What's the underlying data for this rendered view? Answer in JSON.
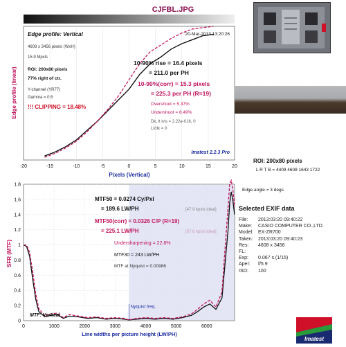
{
  "filename": "CJFBL.JPG",
  "top_chart": {
    "title": "Edge profile: Vertical",
    "timestamp": "20-Mar-2013 13:20:26",
    "info_lines": [
      "4608 x 3456 pixels (WxH)",
      "15.9 Mpxls"
    ],
    "roi_lines": [
      "ROI: 200x80 pixels",
      "77% right of ctr."
    ],
    "channel_lines": [
      "Y-channel  (YR77)",
      "Gamma = 0.5"
    ],
    "clipping_text": "!!! CLIPPING =  18.48%",
    "rise_lines": [
      "10-90% rise = 16.4 pixels",
      "= 211.0 per PH"
    ],
    "rise_corr_lines": [
      "10-90%(corr) = 15.3 pixels",
      "= 225.3 per PH   (R=19)"
    ],
    "overshoot_lines": [
      "Overshoot = 5.37%",
      "Undershoot = 8.49%"
    ],
    "noise_lines": [
      "Dk, lt lvls = 2.22e-016, 0",
      "Lt/dk = 0"
    ],
    "badge": "Imatest 2.2.3 Pro",
    "xlabel": "Pixels (Vertical)",
    "ylabel": "Edge profile (linear)",
    "x_ticks": [
      "-20",
      "-15",
      "-10",
      "-5",
      "0",
      "5",
      "10",
      "15",
      "20"
    ],
    "xlim": [
      -20,
      20
    ],
    "ylim": [
      0,
      1
    ]
  },
  "bottom_chart": {
    "title": "MTF: Vertical",
    "mtf50_lines": [
      "MTF50 = 0.0274 Cy/Pxl",
      "= 189.6 LW/PH"
    ],
    "mtf50_ideal": "[47.9 kpxls ideal]",
    "mtf50corr_lines": [
      "MTF50(corr) = 0.0326 C/P   (R=19)",
      "= 225.1 LW/PH"
    ],
    "mtf50corr_ideal": "[67.6 kpxls ideal]",
    "undersharpening": "Undersharpening = 22.8%",
    "mtf30": "MTF30 = 243 LW/PH",
    "nyquist_mtf": "MTF at Nyquist = 0.00986",
    "nyquist_label": "Nyquist freq.",
    "xlabel": "Line widths per picture height (LW/PH)",
    "ylabel": "SFR (MTF)",
    "x_ticks": [
      "0",
      "1000",
      "2000",
      "3000",
      "4000",
      "5000",
      "6000"
    ],
    "y_ticks": [
      "0",
      "0.2",
      "0.4",
      "0.6",
      "0.8",
      "1",
      "1.2",
      "1.4",
      "1.6",
      "1.8"
    ],
    "xlim": [
      0,
      6912
    ],
    "ylim": [
      0,
      1.8
    ]
  },
  "roi": {
    "label": "ROI: 200x80 pixels",
    "lrtb": "L R T B = 4409 4608  1643 1722"
  },
  "edge_angle": "Edge angle = 3 degs",
  "exif": {
    "title": "Selected EXIF data",
    "rows": [
      {
        "k": "File:",
        "v": "2013:03:20 09:40:22"
      },
      {
        "k": "Make:",
        "v": "CASIO COMPUTER CO.,LTD."
      },
      {
        "k": "Model:",
        "v": "EX-ZR700"
      },
      {
        "k": "Taken:",
        "v": "2013:03:20 09:40:23"
      },
      {
        "k": "Res:",
        "v": "4608 x 3456"
      },
      {
        "k": "FL:",
        "v": ""
      },
      {
        "k": "Exp:",
        "v": "0.067 s  (1/15)"
      },
      {
        "k": "Aper:",
        "v": "f/5.9"
      },
      {
        "k": "ISO:",
        "v": "100"
      }
    ]
  },
  "logo_text": "Imatest",
  "colors": {
    "accent": "#c0135c",
    "blue": "#1a2aa0",
    "dark": "#111111"
  },
  "chart_data": [
    {
      "type": "line",
      "title": "Edge profile: Vertical",
      "xlabel": "Pixels (Vertical)",
      "ylabel": "Edge profile (linear)",
      "xlim": [
        -20,
        20
      ],
      "ylim": [
        0,
        1
      ],
      "series": [
        {
          "x": [
            -16,
            -14,
            -12,
            -10,
            -8,
            -6,
            -4,
            -2,
            0,
            2,
            4,
            6,
            8,
            10,
            12,
            14,
            16
          ],
          "values": [
            0.03,
            0.06,
            0.1,
            0.15,
            0.22,
            0.29,
            0.37,
            0.45,
            0.53,
            0.64,
            0.72,
            0.77,
            0.83,
            0.87,
            0.9,
            0.93,
            0.94
          ]
        },
        {
          "x": [
            -16,
            -14,
            -12,
            -10,
            -8,
            -6,
            -4,
            -2,
            0,
            2,
            4,
            6,
            8,
            10,
            12,
            14,
            16
          ],
          "values": [
            0.02,
            0.05,
            0.09,
            0.14,
            0.21,
            0.29,
            0.38,
            0.48,
            0.6,
            0.72,
            0.81,
            0.86,
            0.91,
            0.95,
            0.98,
            0.99,
            1.0
          ]
        }
      ]
    },
    {
      "type": "line",
      "title": "MTF: Vertical",
      "xlabel": "Line widths per picture height (LW/PH)",
      "ylabel": "SFR (MTF)",
      "xlim": [
        0,
        6912
      ],
      "ylim": [
        0,
        1.8
      ],
      "nyquist": 3456,
      "series": [
        {
          "x": [
            0,
            100,
            200,
            300,
            400,
            500,
            700,
            900,
            1100,
            1300,
            1500,
            1800,
            2100,
            2400,
            2700,
            3000,
            3300,
            3456,
            3700,
            4000,
            4300,
            4600,
            4900,
            5200,
            5500,
            5700,
            5900,
            6100,
            6300,
            6500,
            6600,
            6700,
            6750,
            6800,
            6850,
            6912
          ],
          "values": [
            1.0,
            0.98,
            0.85,
            0.55,
            0.28,
            0.12,
            0.05,
            0.07,
            0.08,
            0.03,
            0.06,
            0.05,
            0.03,
            0.04,
            0.02,
            0.03,
            0.02,
            0.01,
            0.02,
            0.03,
            0.02,
            0.03,
            0.02,
            0.04,
            0.07,
            0.12,
            0.18,
            0.22,
            0.15,
            0.3,
            0.75,
            1.2,
            1.55,
            1.7,
            1.6,
            1.4
          ]
        },
        {
          "x": [
            0,
            100,
            200,
            300,
            400,
            500,
            700,
            900,
            1100,
            1300,
            1500,
            1800,
            2100,
            2400,
            2700,
            3000,
            3300,
            3456,
            3700,
            4000,
            4300,
            4600,
            4900,
            5200,
            5500,
            5700,
            5900,
            6100,
            6300,
            6500,
            6600,
            6700,
            6750,
            6800,
            6850,
            6912
          ],
          "values": [
            1.0,
            1.0,
            0.9,
            0.65,
            0.35,
            0.16,
            0.06,
            0.09,
            0.1,
            0.04,
            0.08,
            0.06,
            0.04,
            0.05,
            0.03,
            0.04,
            0.03,
            0.01,
            0.03,
            0.04,
            0.03,
            0.04,
            0.03,
            0.05,
            0.09,
            0.15,
            0.22,
            0.27,
            0.18,
            0.38,
            0.95,
            1.5,
            1.8,
            1.85,
            1.75,
            1.5
          ]
        }
      ]
    }
  ]
}
